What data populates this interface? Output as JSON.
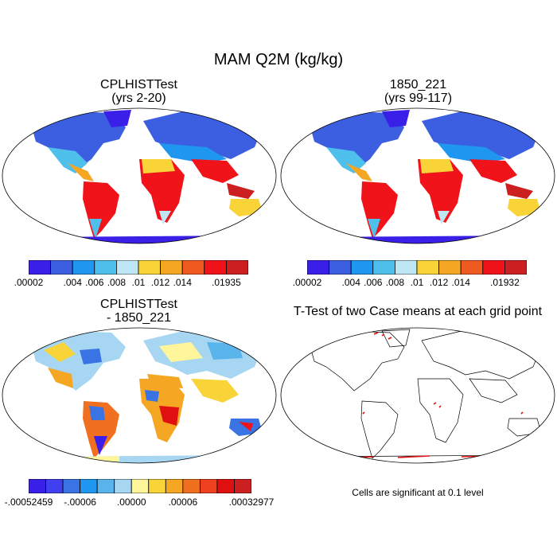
{
  "figure": {
    "title": "MAM Q2M (kg/kg)"
  },
  "panels": [
    {
      "id": "p1",
      "title_line1": "CPLHISTTest",
      "title_line2": "(yrs 2-20)"
    },
    {
      "id": "p2",
      "title_line1": "1850_221",
      "title_line2": "(yrs 99-117)"
    },
    {
      "id": "p3",
      "title_line1": "CPLHISTTest",
      "title_line2": "- 1850_221"
    },
    {
      "id": "p4",
      "title_line1": "T-Test of two Case means at each grid point",
      "title_line2": ""
    }
  ],
  "colorbars": {
    "cb1": {
      "colors": [
        "#3a1fe8",
        "#3b5fe0",
        "#1f96f0",
        "#4fc0ec",
        "#bfe6f4",
        "#f8d438",
        "#f5a623",
        "#ef5a20",
        "#f0141a",
        "#cc2020"
      ],
      "labels": [
        ".00002",
        ".004",
        ".006",
        ".008",
        ".01",
        ".012",
        ".014",
        ".01935"
      ]
    },
    "cb2": {
      "colors": [
        "#3a1fe8",
        "#3b5fe0",
        "#1f96f0",
        "#4fc0ec",
        "#bfe6f4",
        "#f8d438",
        "#f5a623",
        "#ef5a20",
        "#f0141a",
        "#cc2020"
      ],
      "labels": [
        ".00002",
        ".004",
        ".006",
        ".008",
        ".01",
        ".012",
        ".014",
        ".01932"
      ]
    },
    "cb3": {
      "colors": [
        "#3a1fe8",
        "#4040f0",
        "#3a74e4",
        "#1f96f0",
        "#5ab4ec",
        "#a6d6f2",
        "#fff59a",
        "#f8d438",
        "#f5a623",
        "#f07020",
        "#ef4020",
        "#e01010",
        "#cc2020"
      ],
      "labels": [
        "-.00052459",
        "-.00006",
        ".00000",
        ".00006",
        ".00032977"
      ]
    }
  },
  "ttest": {
    "note": "Cells are significant at 0.1 level"
  }
}
